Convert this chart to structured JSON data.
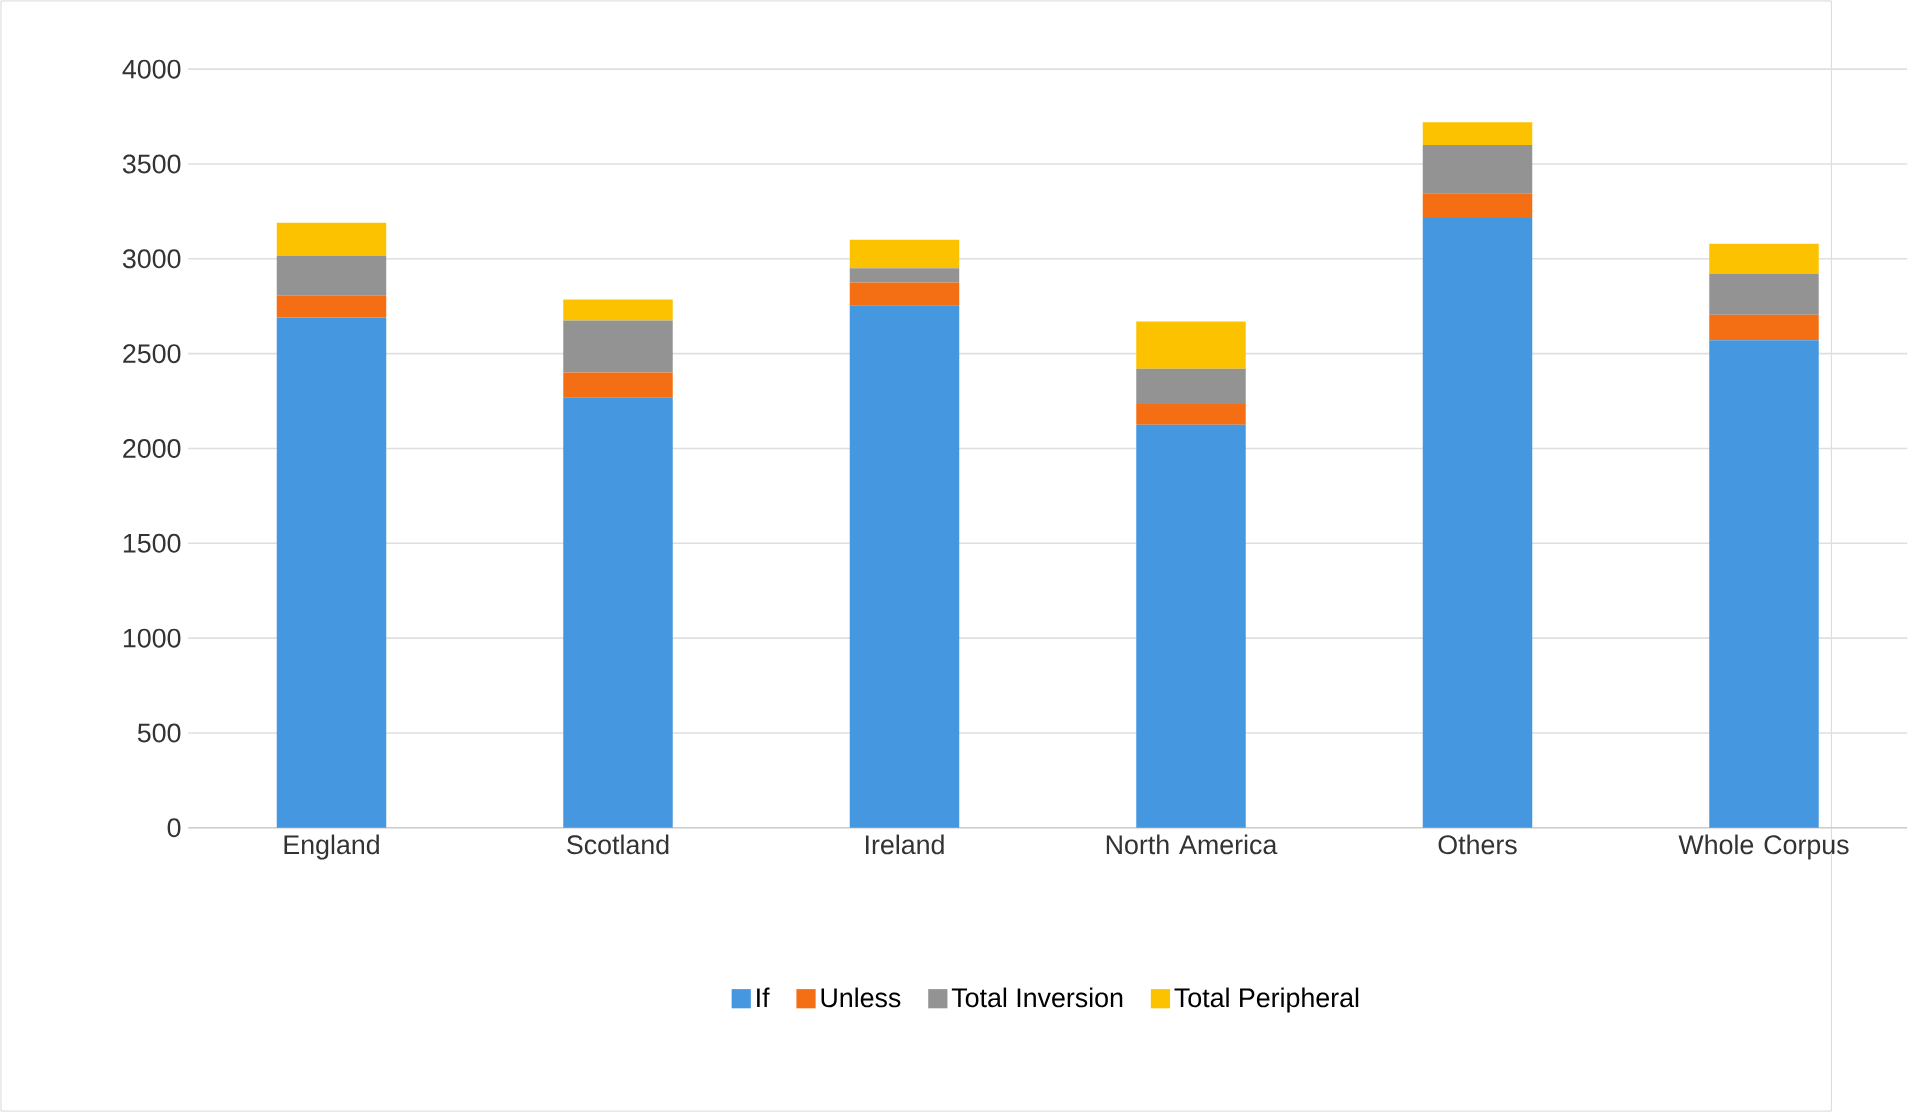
{
  "chart_data": {
    "type": "bar",
    "stacked": true,
    "categories": [
      "England",
      "Scotland",
      "Ireland",
      "North America",
      "Others",
      "Whole Corpus"
    ],
    "series": [
      {
        "name": "If",
        "color": "#4597e0",
        "values": [
          2690,
          2270,
          2755,
          2125,
          3215,
          2570
        ]
      },
      {
        "name": "Unless",
        "color": "#f46f14",
        "values": [
          115,
          130,
          120,
          110,
          130,
          135
        ]
      },
      {
        "name": "Total Inversion",
        "color": "#939393",
        "values": [
          210,
          275,
          75,
          185,
          255,
          215
        ]
      },
      {
        "name": "Total Peripheral",
        "color": "#fcc200",
        "values": [
          175,
          110,
          150,
          250,
          120,
          160
        ]
      }
    ],
    "ylim": [
      0,
      4000
    ],
    "yticks": [
      0,
      500,
      1000,
      1500,
      2000,
      2500,
      3000,
      3500,
      4000
    ],
    "grid": "y",
    "legend": "bottom"
  }
}
